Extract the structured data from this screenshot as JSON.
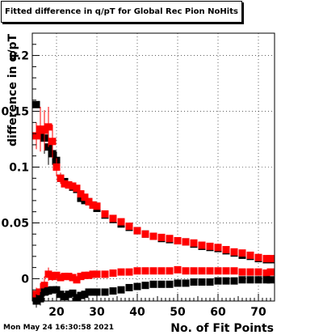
{
  "header": {
    "title": "Fitted difference in q/pT for Global Rec Pion NoHits"
  },
  "footer": {
    "date": "Mon May 24 16:30:58 2021"
  },
  "colors": {
    "series_black": "#000000",
    "series_red": "#ff0000",
    "grid": "#000000"
  },
  "chart_data": {
    "type": "scatter",
    "title": "Fitted difference in q/pT for Global Rec Pion NoHits",
    "xlabel": "No. of Fit Points",
    "ylabel": "difference in q/pT",
    "xlim": [
      14,
      74
    ],
    "ylim": [
      -0.02,
      0.22
    ],
    "grid": true,
    "x_ticks": [
      20,
      30,
      40,
      50,
      60,
      70
    ],
    "x_tick_labels": [
      "20",
      "30",
      "40",
      "50",
      "60",
      "70"
    ],
    "y_ticks": [
      0,
      0.05,
      0.1,
      0.15,
      0.2
    ],
    "y_tick_labels": [
      "0",
      "0.05",
      "0.1",
      "0.15",
      "0.2"
    ],
    "series": [
      {
        "marker": "square",
        "color": "#000000",
        "x": [
          15,
          16,
          17,
          18,
          19,
          20,
          21,
          22,
          23,
          24,
          25,
          26,
          27,
          28,
          29,
          30,
          32,
          34,
          36,
          38,
          40,
          42,
          44,
          46,
          48,
          50,
          52,
          54,
          56,
          58,
          60,
          62,
          64,
          66,
          68,
          70,
          72,
          73
        ],
        "y": [
          0.156,
          0.13,
          0.126,
          0.118,
          0.112,
          0.106,
          0.09,
          0.087,
          0.084,
          0.082,
          0.08,
          0.072,
          0.07,
          0.069,
          0.066,
          0.063,
          0.057,
          0.053,
          0.049,
          0.046,
          0.043,
          0.04,
          0.038,
          0.036,
          0.035,
          0.034,
          0.033,
          0.031,
          0.029,
          0.028,
          0.027,
          0.025,
          0.023,
          0.021,
          0.02,
          0.018,
          0.017,
          0.017
        ],
        "err": [
          0.0,
          0.015,
          0.014,
          0.016,
          0.01,
          0.008,
          0.003,
          0.002,
          0.002,
          0.002,
          0.002,
          0.001,
          0.001,
          0.001,
          0.001,
          0.001,
          0.001,
          0.001,
          0.001,
          0.001,
          0.001,
          0.001,
          0.001,
          0.001,
          0.001,
          0.001,
          0.001,
          0.001,
          0.001,
          0.001,
          0.001,
          0.001,
          0.001,
          0.001,
          0.001,
          0.001,
          0.001,
          0.001
        ]
      },
      {
        "marker": "square",
        "color": "#ff0000",
        "x": [
          15,
          16,
          17,
          18,
          19,
          20,
          21,
          22,
          23,
          24,
          25,
          26,
          27,
          28,
          29,
          30,
          32,
          34,
          36,
          38,
          40,
          42,
          44,
          46,
          48,
          50,
          52,
          54,
          56,
          58,
          60,
          62,
          64,
          66,
          68,
          70,
          72,
          73
        ],
        "y": [
          0.128,
          0.134,
          0.133,
          0.136,
          0.123,
          0.1,
          0.09,
          0.085,
          0.084,
          0.083,
          0.081,
          0.076,
          0.073,
          0.069,
          0.066,
          0.065,
          0.058,
          0.054,
          0.051,
          0.047,
          0.043,
          0.04,
          0.038,
          0.037,
          0.036,
          0.034,
          0.033,
          0.032,
          0.03,
          0.029,
          0.028,
          0.026,
          0.024,
          0.023,
          0.021,
          0.019,
          0.018,
          0.018
        ],
        "err": [
          0.012,
          0.02,
          0.018,
          0.018,
          0.015,
          0.008,
          0.005,
          0.003,
          0.002,
          0.002,
          0.002,
          0.001,
          0.001,
          0.001,
          0.001,
          0.001,
          0.001,
          0.001,
          0.001,
          0.001,
          0.001,
          0.001,
          0.001,
          0.001,
          0.001,
          0.001,
          0.001,
          0.001,
          0.001,
          0.001,
          0.001,
          0.001,
          0.001,
          0.001,
          0.001,
          0.001,
          0.001,
          0.001
        ]
      },
      {
        "marker": "square",
        "color": "#ff0000",
        "x": [
          15,
          16,
          17,
          18,
          19,
          20,
          21,
          22,
          23,
          24,
          25,
          26,
          27,
          28,
          29,
          30,
          32,
          34,
          36,
          38,
          40,
          42,
          44,
          46,
          48,
          50,
          52,
          54,
          56,
          58,
          60,
          62,
          64,
          66,
          68,
          70,
          72,
          73
        ],
        "y": [
          -0.014,
          -0.012,
          -0.006,
          0.004,
          0.002,
          0.003,
          0.001,
          0.002,
          0.002,
          0.001,
          -0.001,
          0.002,
          0.003,
          0.003,
          0.004,
          0.004,
          0.004,
          0.005,
          0.006,
          0.006,
          0.007,
          0.007,
          0.007,
          0.007,
          0.007,
          0.008,
          0.007,
          0.007,
          0.007,
          0.007,
          0.007,
          0.007,
          0.007,
          0.006,
          0.006,
          0.006,
          0.005,
          0.006
        ],
        "err": [
          0.006,
          0.008,
          0.008,
          0.006,
          0.004,
          0.003,
          0.002,
          0.002,
          0.002,
          0.002,
          0.002,
          0.001,
          0.001,
          0.001,
          0.001,
          0.001,
          0.001,
          0.001,
          0.001,
          0.001,
          0.001,
          0.001,
          0.001,
          0.001,
          0.001,
          0.001,
          0.001,
          0.001,
          0.001,
          0.001,
          0.001,
          0.001,
          0.001,
          0.001,
          0.001,
          0.001,
          0.001,
          0.001
        ]
      },
      {
        "marker": "square",
        "color": "#000000",
        "x": [
          15,
          16,
          17,
          18,
          19,
          20,
          21,
          22,
          23,
          24,
          25,
          26,
          27,
          28,
          29,
          30,
          32,
          34,
          36,
          38,
          40,
          42,
          44,
          46,
          48,
          50,
          52,
          54,
          56,
          58,
          60,
          62,
          64,
          66,
          68,
          70,
          72,
          73
        ],
        "y": [
          -0.02,
          -0.018,
          -0.012,
          -0.011,
          -0.01,
          -0.01,
          -0.014,
          -0.016,
          -0.014,
          -0.013,
          -0.017,
          -0.015,
          -0.014,
          -0.012,
          -0.012,
          -0.012,
          -0.012,
          -0.011,
          -0.01,
          -0.008,
          -0.007,
          -0.006,
          -0.005,
          -0.005,
          -0.005,
          -0.004,
          -0.004,
          -0.003,
          -0.003,
          -0.003,
          -0.002,
          -0.002,
          -0.002,
          -0.001,
          -0.001,
          -0.001,
          -0.001,
          -0.001
        ],
        "err": [
          0.006,
          0.006,
          0.004,
          0.004,
          0.003,
          0.003,
          0.002,
          0.002,
          0.002,
          0.002,
          0.002,
          0.001,
          0.001,
          0.001,
          0.001,
          0.001,
          0.001,
          0.001,
          0.001,
          0.001,
          0.001,
          0.001,
          0.001,
          0.001,
          0.001,
          0.001,
          0.001,
          0.001,
          0.001,
          0.001,
          0.001,
          0.001,
          0.001,
          0.001,
          0.001,
          0.001,
          0.001,
          0.001
        ]
      }
    ]
  }
}
